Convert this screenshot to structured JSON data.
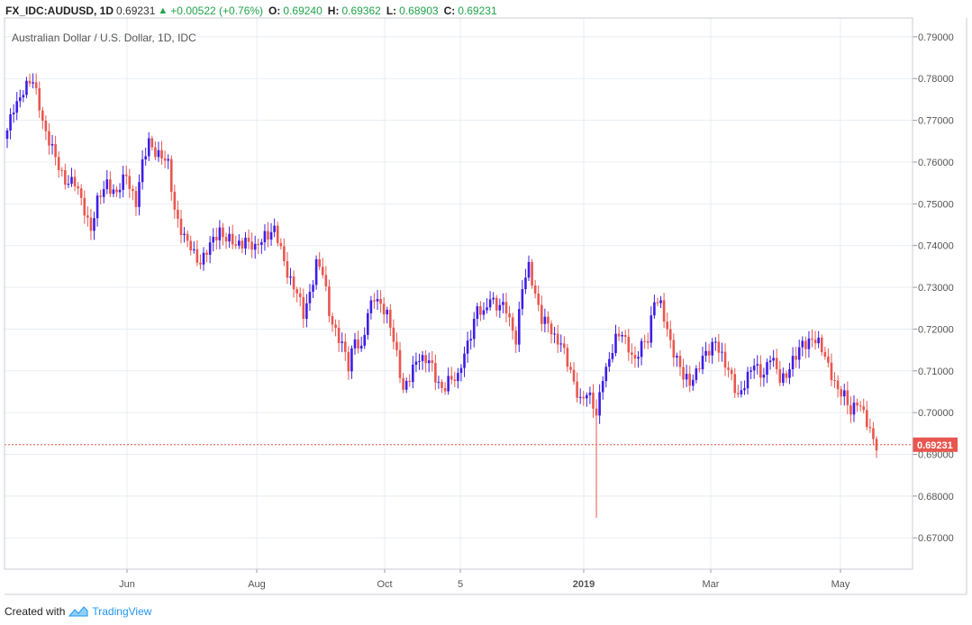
{
  "header": {
    "symbol": "FX_IDC:AUDUSD, 1D",
    "last": "0.69231",
    "change": "+0.00522 (+0.76%)",
    "o_label": "O:",
    "o": "0.69240",
    "h_label": "H:",
    "h": "0.69362",
    "l_label": "L:",
    "l": "0.68903",
    "c_label": "C:",
    "c": "0.69231"
  },
  "footer": {
    "created": "Created with",
    "brand": "TradingView"
  },
  "colors": {
    "up": "#3d1ee6",
    "down": "#e8574f",
    "grid": "#e8edf3",
    "axis": "#555555",
    "price_label_bg": "#e8574f"
  },
  "chart_data": {
    "type": "candlestick",
    "title": "Australian Dollar / U.S. Dollar, 1D, IDC",
    "ylim": [
      0.6625,
      0.7945
    ],
    "yticks": [
      0.67,
      0.68,
      0.69,
      0.7,
      0.71,
      0.72,
      0.73,
      0.74,
      0.75,
      0.76,
      0.77,
      0.78,
      0.79
    ],
    "ytick_labels": [
      "0.67000",
      "0.68000",
      "0.69000",
      "0.70000",
      "0.71000",
      "0.72000",
      "0.73000",
      "0.74000",
      "0.75000",
      "0.76000",
      "0.77000",
      "0.78000",
      "0.79000"
    ],
    "xlabels": [
      "Jun",
      "Aug",
      "Oct",
      "5",
      "2019",
      "Mar",
      "May"
    ],
    "current_price": 0.69231,
    "current_price_label": "0.69231",
    "grid": true,
    "path": [
      [
        0,
        0.7668
      ],
      [
        2,
        0.773
      ],
      [
        5,
        0.7775
      ],
      [
        8,
        0.779
      ],
      [
        10,
        0.774
      ],
      [
        12,
        0.767
      ],
      [
        15,
        0.7605
      ],
      [
        18,
        0.756
      ],
      [
        21,
        0.7545
      ],
      [
        24,
        0.749
      ],
      [
        26,
        0.744
      ],
      [
        28,
        0.75
      ],
      [
        31,
        0.7555
      ],
      [
        34,
        0.752
      ],
      [
        37,
        0.757
      ],
      [
        40,
        0.7505
      ],
      [
        42,
        0.759
      ],
      [
        44,
        0.765
      ],
      [
        47,
        0.762
      ],
      [
        50,
        0.759
      ],
      [
        52,
        0.749
      ],
      [
        55,
        0.7415
      ],
      [
        58,
        0.738
      ],
      [
        60,
        0.7365
      ],
      [
        63,
        0.7395
      ],
      [
        66,
        0.744
      ],
      [
        68,
        0.742
      ],
      [
        71,
        0.7395
      ],
      [
        74,
        0.742
      ],
      [
        77,
        0.7385
      ],
      [
        80,
        0.743
      ],
      [
        83,
        0.7435
      ],
      [
        85,
        0.7385
      ],
      [
        87,
        0.734
      ],
      [
        90,
        0.7285
      ],
      [
        92,
        0.723
      ],
      [
        94,
        0.729
      ],
      [
        96,
        0.736
      ],
      [
        98,
        0.733
      ],
      [
        100,
        0.724
      ],
      [
        102,
        0.72
      ],
      [
        104,
        0.716
      ],
      [
        106,
        0.7105
      ],
      [
        108,
        0.7185
      ],
      [
        110,
        0.715
      ],
      [
        112,
        0.723
      ],
      [
        114,
        0.728
      ],
      [
        116,
        0.7265
      ],
      [
        118,
        0.723
      ],
      [
        121,
        0.714
      ],
      [
        123,
        0.706
      ],
      [
        125,
        0.708
      ],
      [
        128,
        0.7135
      ],
      [
        131,
        0.713
      ],
      [
        133,
        0.7075
      ],
      [
        135,
        0.7055
      ],
      [
        137,
        0.7085
      ],
      [
        140,
        0.7075
      ],
      [
        142,
        0.7145
      ],
      [
        144,
        0.7195
      ],
      [
        146,
        0.7245
      ],
      [
        148,
        0.723
      ],
      [
        150,
        0.7285
      ],
      [
        152,
        0.7255
      ],
      [
        155,
        0.7245
      ],
      [
        158,
        0.718
      ],
      [
        160,
        0.7295
      ],
      [
        162,
        0.7345
      ],
      [
        164,
        0.729
      ],
      [
        166,
        0.7225
      ],
      [
        168,
        0.7205
      ],
      [
        170,
        0.718
      ],
      [
        172,
        0.7175
      ],
      [
        174,
        0.7115
      ],
      [
        176,
        0.7065
      ],
      [
        178,
        0.7035
      ],
      [
        180,
        0.705
      ],
      [
        182,
        0.701
      ],
      [
        183,
        0.699
      ],
      [
        185,
        0.7095
      ],
      [
        187,
        0.7125
      ],
      [
        189,
        0.717
      ],
      [
        191,
        0.7195
      ],
      [
        193,
        0.716
      ],
      [
        195,
        0.7115
      ],
      [
        197,
        0.716
      ],
      [
        199,
        0.7185
      ],
      [
        201,
        0.727
      ],
      [
        203,
        0.725
      ],
      [
        205,
        0.72
      ],
      [
        207,
        0.715
      ],
      [
        210,
        0.708
      ],
      [
        212,
        0.7075
      ],
      [
        215,
        0.7115
      ],
      [
        218,
        0.7145
      ],
      [
        220,
        0.718
      ],
      [
        223,
        0.711
      ],
      [
        225,
        0.708
      ],
      [
        227,
        0.7045
      ],
      [
        230,
        0.708
      ],
      [
        232,
        0.7115
      ],
      [
        235,
        0.7095
      ],
      [
        237,
        0.713
      ],
      [
        240,
        0.7085
      ],
      [
        242,
        0.7095
      ],
      [
        245,
        0.713
      ],
      [
        247,
        0.717
      ],
      [
        250,
        0.7175
      ],
      [
        252,
        0.716
      ],
      [
        254,
        0.714
      ],
      [
        256,
        0.7095
      ],
      [
        258,
        0.7045
      ],
      [
        260,
        0.704
      ],
      [
        262,
        0.701
      ],
      [
        264,
        0.7025
      ],
      [
        266,
        0.699
      ],
      [
        268,
        0.696
      ],
      [
        270,
        0.6925
      ]
    ],
    "spikes": [
      {
        "index": 183,
        "low": 0.6748,
        "high": 0.702
      }
    ]
  }
}
